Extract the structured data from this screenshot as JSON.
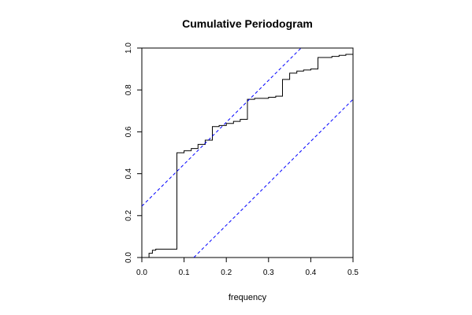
{
  "chart_data": {
    "type": "line",
    "title": "Cumulative Periodogram",
    "xlabel": "frequency",
    "ylabel": "",
    "xlim": [
      0,
      0.5
    ],
    "ylim": [
      0,
      1
    ],
    "x_ticks": [
      "0.0",
      "0.1",
      "0.2",
      "0.3",
      "0.4",
      "0.5"
    ],
    "y_ticks": [
      "0.0",
      "0.2",
      "0.4",
      "0.6",
      "0.8",
      "1.0"
    ],
    "grid": false,
    "series": [
      {
        "style": "step",
        "color": "#000000",
        "points": [
          [
            0.0,
            0.0
          ],
          [
            0.017,
            0.0
          ],
          [
            0.017,
            0.02
          ],
          [
            0.025,
            0.02
          ],
          [
            0.025,
            0.035
          ],
          [
            0.033,
            0.035
          ],
          [
            0.033,
            0.04
          ],
          [
            0.083,
            0.04
          ],
          [
            0.083,
            0.5
          ],
          [
            0.1,
            0.5
          ],
          [
            0.1,
            0.51
          ],
          [
            0.117,
            0.51
          ],
          [
            0.117,
            0.52
          ],
          [
            0.133,
            0.52
          ],
          [
            0.133,
            0.54
          ],
          [
            0.15,
            0.54
          ],
          [
            0.15,
            0.56
          ],
          [
            0.167,
            0.56
          ],
          [
            0.167,
            0.625
          ],
          [
            0.183,
            0.625
          ],
          [
            0.183,
            0.63
          ],
          [
            0.2,
            0.63
          ],
          [
            0.2,
            0.64
          ],
          [
            0.217,
            0.64
          ],
          [
            0.217,
            0.65
          ],
          [
            0.233,
            0.65
          ],
          [
            0.233,
            0.66
          ],
          [
            0.25,
            0.66
          ],
          [
            0.25,
            0.755
          ],
          [
            0.267,
            0.755
          ],
          [
            0.267,
            0.76
          ],
          [
            0.3,
            0.76
          ],
          [
            0.3,
            0.765
          ],
          [
            0.317,
            0.765
          ],
          [
            0.317,
            0.77
          ],
          [
            0.333,
            0.77
          ],
          [
            0.333,
            0.85
          ],
          [
            0.35,
            0.85
          ],
          [
            0.35,
            0.88
          ],
          [
            0.367,
            0.88
          ],
          [
            0.367,
            0.89
          ],
          [
            0.383,
            0.89
          ],
          [
            0.383,
            0.895
          ],
          [
            0.4,
            0.895
          ],
          [
            0.4,
            0.9
          ],
          [
            0.417,
            0.9
          ],
          [
            0.417,
            0.955
          ],
          [
            0.45,
            0.955
          ],
          [
            0.45,
            0.96
          ],
          [
            0.467,
            0.96
          ],
          [
            0.467,
            0.965
          ],
          [
            0.483,
            0.965
          ],
          [
            0.483,
            0.97
          ],
          [
            0.5,
            0.97
          ],
          [
            0.5,
            0.99
          ]
        ]
      },
      {
        "style": "dashed",
        "color": "#0000ff",
        "points": [
          [
            0.0,
            0.245
          ],
          [
            0.377,
            1.0
          ]
        ]
      },
      {
        "style": "dashed",
        "color": "#0000ff",
        "points": [
          [
            0.123,
            0.0
          ],
          [
            0.5,
            0.755
          ]
        ]
      }
    ]
  }
}
